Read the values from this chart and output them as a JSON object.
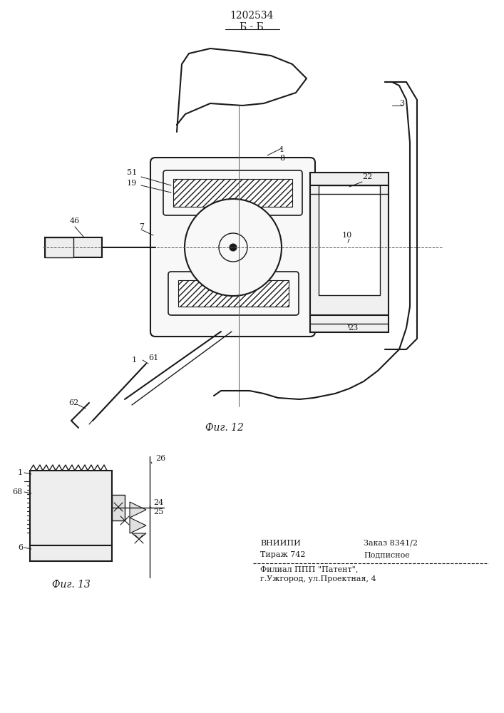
{
  "title": "1202534",
  "subtitle": "Б - Б",
  "fig12_label": "Фиг. 12",
  "fig13_label": "Фиг. 13",
  "bg_color": "#ffffff",
  "line_color": "#1a1a1a"
}
